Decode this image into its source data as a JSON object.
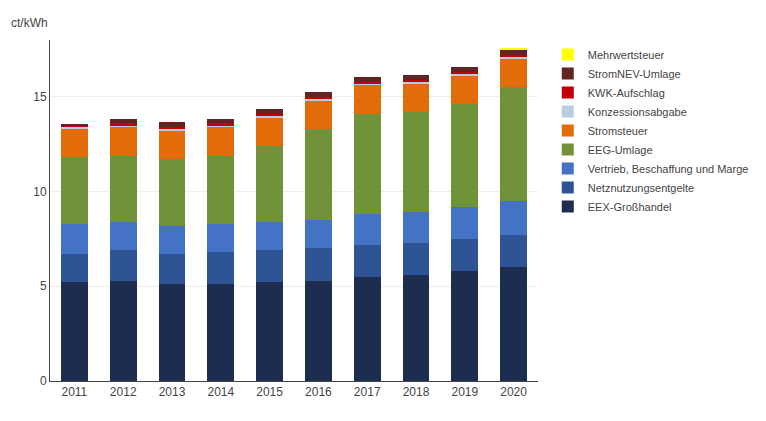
{
  "chart_data": {
    "type": "bar",
    "stacked": true,
    "ylabel": "ct/kWh",
    "categories": [
      "2011",
      "2012",
      "2013",
      "2014",
      "2015",
      "2016",
      "2017",
      "2018",
      "2019",
      "2020"
    ],
    "series": [
      {
        "name": "EEX-Großhandel",
        "color": "#1c2d4f",
        "values": [
          5.2,
          5.3,
          5.1,
          5.1,
          5.2,
          5.3,
          5.5,
          5.6,
          5.8,
          6.0
        ]
      },
      {
        "name": "Netznutzungsentgelte",
        "color": "#2e5496",
        "values": [
          1.5,
          1.6,
          1.6,
          1.7,
          1.7,
          1.7,
          1.7,
          1.7,
          1.7,
          1.7
        ]
      },
      {
        "name": "Vertrieb, Beschaffung und Marge",
        "color": "#4472c4",
        "values": [
          1.6,
          1.5,
          1.5,
          1.5,
          1.5,
          1.5,
          1.6,
          1.6,
          1.7,
          1.8
        ]
      },
      {
        "name": "EEG-Umlage",
        "color": "#70923a",
        "values": [
          3.5,
          3.5,
          3.5,
          3.6,
          4.0,
          4.8,
          5.3,
          5.3,
          5.4,
          6.0
        ]
      },
      {
        "name": "Stromsteuer",
        "color": "#e36c0a",
        "values": [
          1.5,
          1.5,
          1.5,
          1.5,
          1.5,
          1.5,
          1.5,
          1.5,
          1.5,
          1.5
        ]
      },
      {
        "name": "Konzessionsabgabe",
        "color": "#b8cce4",
        "values": [
          0.11,
          0.11,
          0.11,
          0.11,
          0.11,
          0.11,
          0.11,
          0.11,
          0.11,
          0.11
        ]
      },
      {
        "name": "KWK-Aufschlag",
        "color": "#c0000a",
        "values": [
          0.09,
          0.09,
          0.09,
          0.09,
          0.09,
          0.09,
          0.09,
          0.09,
          0.09,
          0.09
        ]
      },
      {
        "name": "StromNEV-Umlage",
        "color": "#632523",
        "values": [
          0.05,
          0.25,
          0.25,
          0.25,
          0.25,
          0.25,
          0.25,
          0.25,
          0.25,
          0.25
        ]
      },
      {
        "name": "Mehrwertsteuer",
        "color": "#ffff00",
        "values": [
          0.0,
          0.0,
          0.0,
          0.0,
          0.0,
          0.0,
          0.0,
          0.0,
          0.0,
          0.12
        ]
      }
    ],
    "ylim": [
      0,
      18
    ],
    "yticks": [
      0,
      5,
      10,
      15
    ],
    "grid": true,
    "legend": "right"
  }
}
